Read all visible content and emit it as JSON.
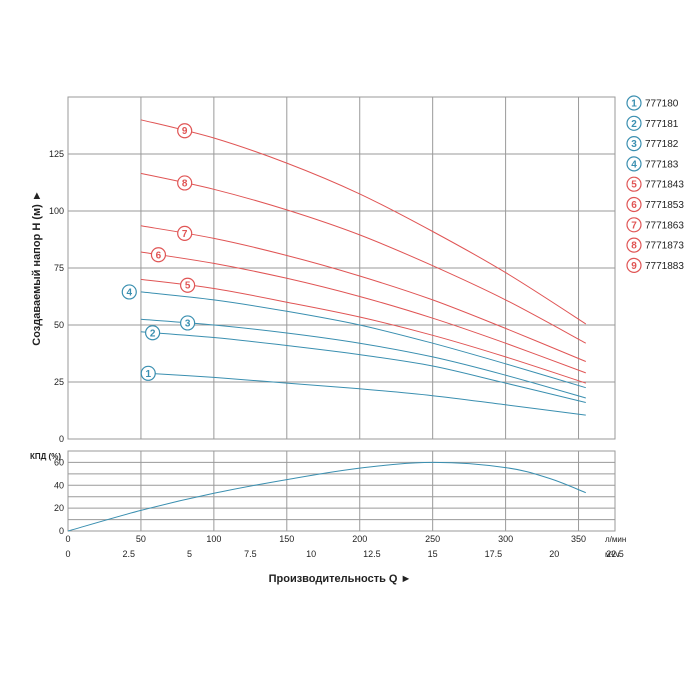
{
  "chart_data": [
    {
      "type": "line",
      "ylabel": "Создаваемый напор H (м) ►",
      "ylim": [
        0,
        150
      ],
      "yticks": [
        "0",
        "25",
        "50",
        "75",
        "100",
        "125"
      ],
      "x_lpm_ticks": [
        "0",
        "50",
        "100",
        "150",
        "200",
        "250",
        "300",
        "350"
      ],
      "xlim_lpm": [
        0,
        375
      ],
      "grid": true,
      "series": [
        {
          "name": "777180",
          "label": "1",
          "color": "#3a8fb0",
          "x": [
            50,
            100,
            150,
            200,
            250,
            300,
            355
          ],
          "y": [
            29,
            27,
            24.5,
            22,
            19,
            15,
            10.5
          ]
        },
        {
          "name": "777181",
          "label": "2",
          "color": "#3a8fb0",
          "x": [
            50,
            100,
            150,
            200,
            250,
            300,
            355
          ],
          "y": [
            47,
            44.5,
            41,
            37,
            32,
            24.5,
            16
          ]
        },
        {
          "name": "777182",
          "label": "3",
          "color": "#3a8fb0",
          "x": [
            50,
            100,
            150,
            200,
            250,
            300,
            355
          ],
          "y": [
            52.5,
            50,
            46.5,
            42,
            36,
            28,
            18
          ]
        },
        {
          "name": "777183",
          "label": "4",
          "color": "#3a8fb0",
          "x": [
            50,
            100,
            150,
            200,
            250,
            300,
            355
          ],
          "y": [
            64.5,
            61,
            56,
            50,
            42,
            33,
            22.5
          ]
        },
        {
          "name": "7771843",
          "label": "5",
          "color": "#e05555",
          "x": [
            50,
            100,
            150,
            200,
            250,
            300,
            355
          ],
          "y": [
            70,
            66,
            60,
            53.5,
            45.5,
            36,
            24.5
          ]
        },
        {
          "name": "7771853",
          "label": "6",
          "color": "#e05555",
          "x": [
            50,
            100,
            150,
            200,
            250,
            300,
            355
          ],
          "y": [
            82,
            77,
            70.5,
            62.5,
            53,
            42,
            29
          ]
        },
        {
          "name": "7771863",
          "label": "7",
          "color": "#e05555",
          "x": [
            50,
            100,
            150,
            200,
            250,
            300,
            355
          ],
          "y": [
            93.5,
            88,
            80.5,
            71.5,
            61,
            48.5,
            34
          ]
        },
        {
          "name": "7771873",
          "label": "8",
          "color": "#e05555",
          "x": [
            50,
            100,
            150,
            200,
            250,
            300,
            355
          ],
          "y": [
            116.5,
            109.5,
            100.5,
            89.5,
            76,
            61,
            42
          ]
        },
        {
          "name": "7771883",
          "label": "9",
          "color": "#e05555",
          "x": [
            50,
            100,
            150,
            200,
            250,
            300,
            355
          ],
          "y": [
            140,
            132,
            121,
            107.5,
            91,
            73,
            50.5
          ]
        }
      ]
    },
    {
      "type": "line",
      "ylabel": "КПД (%)",
      "ylim": [
        0,
        70
      ],
      "yticks": [
        "0",
        "20",
        "40",
        "60"
      ],
      "x_lpm_ticks": [
        "0",
        "50",
        "100",
        "150",
        "200",
        "250",
        "300",
        "350"
      ],
      "x_lpm_unit": "л/мин",
      "x_m3h_ticks": [
        "0",
        "2.5",
        "5",
        "7.5",
        "10",
        "12.5",
        "15",
        "17.5",
        "20",
        "22.5"
      ],
      "x_m3h_unit": "м³/ч",
      "xlabel": "Производительность Q ►",
      "xlim_lpm": [
        0,
        375
      ],
      "grid": true,
      "series": [
        {
          "color": "#3a8fb0",
          "x": [
            0,
            50,
            100,
            150,
            200,
            250,
            300,
            330,
            355
          ],
          "y": [
            0,
            18,
            33,
            45,
            55,
            60,
            55.5,
            46,
            33.5
          ]
        }
      ]
    }
  ],
  "legend": [
    {
      "label": "1",
      "name": "777180",
      "color": "#3a8fb0"
    },
    {
      "label": "2",
      "name": "777181",
      "color": "#3a8fb0"
    },
    {
      "label": "3",
      "name": "777182",
      "color": "#3a8fb0"
    },
    {
      "label": "4",
      "name": "777183",
      "color": "#3a8fb0"
    },
    {
      "label": "5",
      "name": "7771843",
      "color": "#e05555"
    },
    {
      "label": "6",
      "name": "7771853",
      "color": "#e05555"
    },
    {
      "label": "7",
      "name": "7771863",
      "color": "#e05555"
    },
    {
      "label": "8",
      "name": "7771873",
      "color": "#e05555"
    },
    {
      "label": "9",
      "name": "7771883",
      "color": "#e05555"
    }
  ]
}
